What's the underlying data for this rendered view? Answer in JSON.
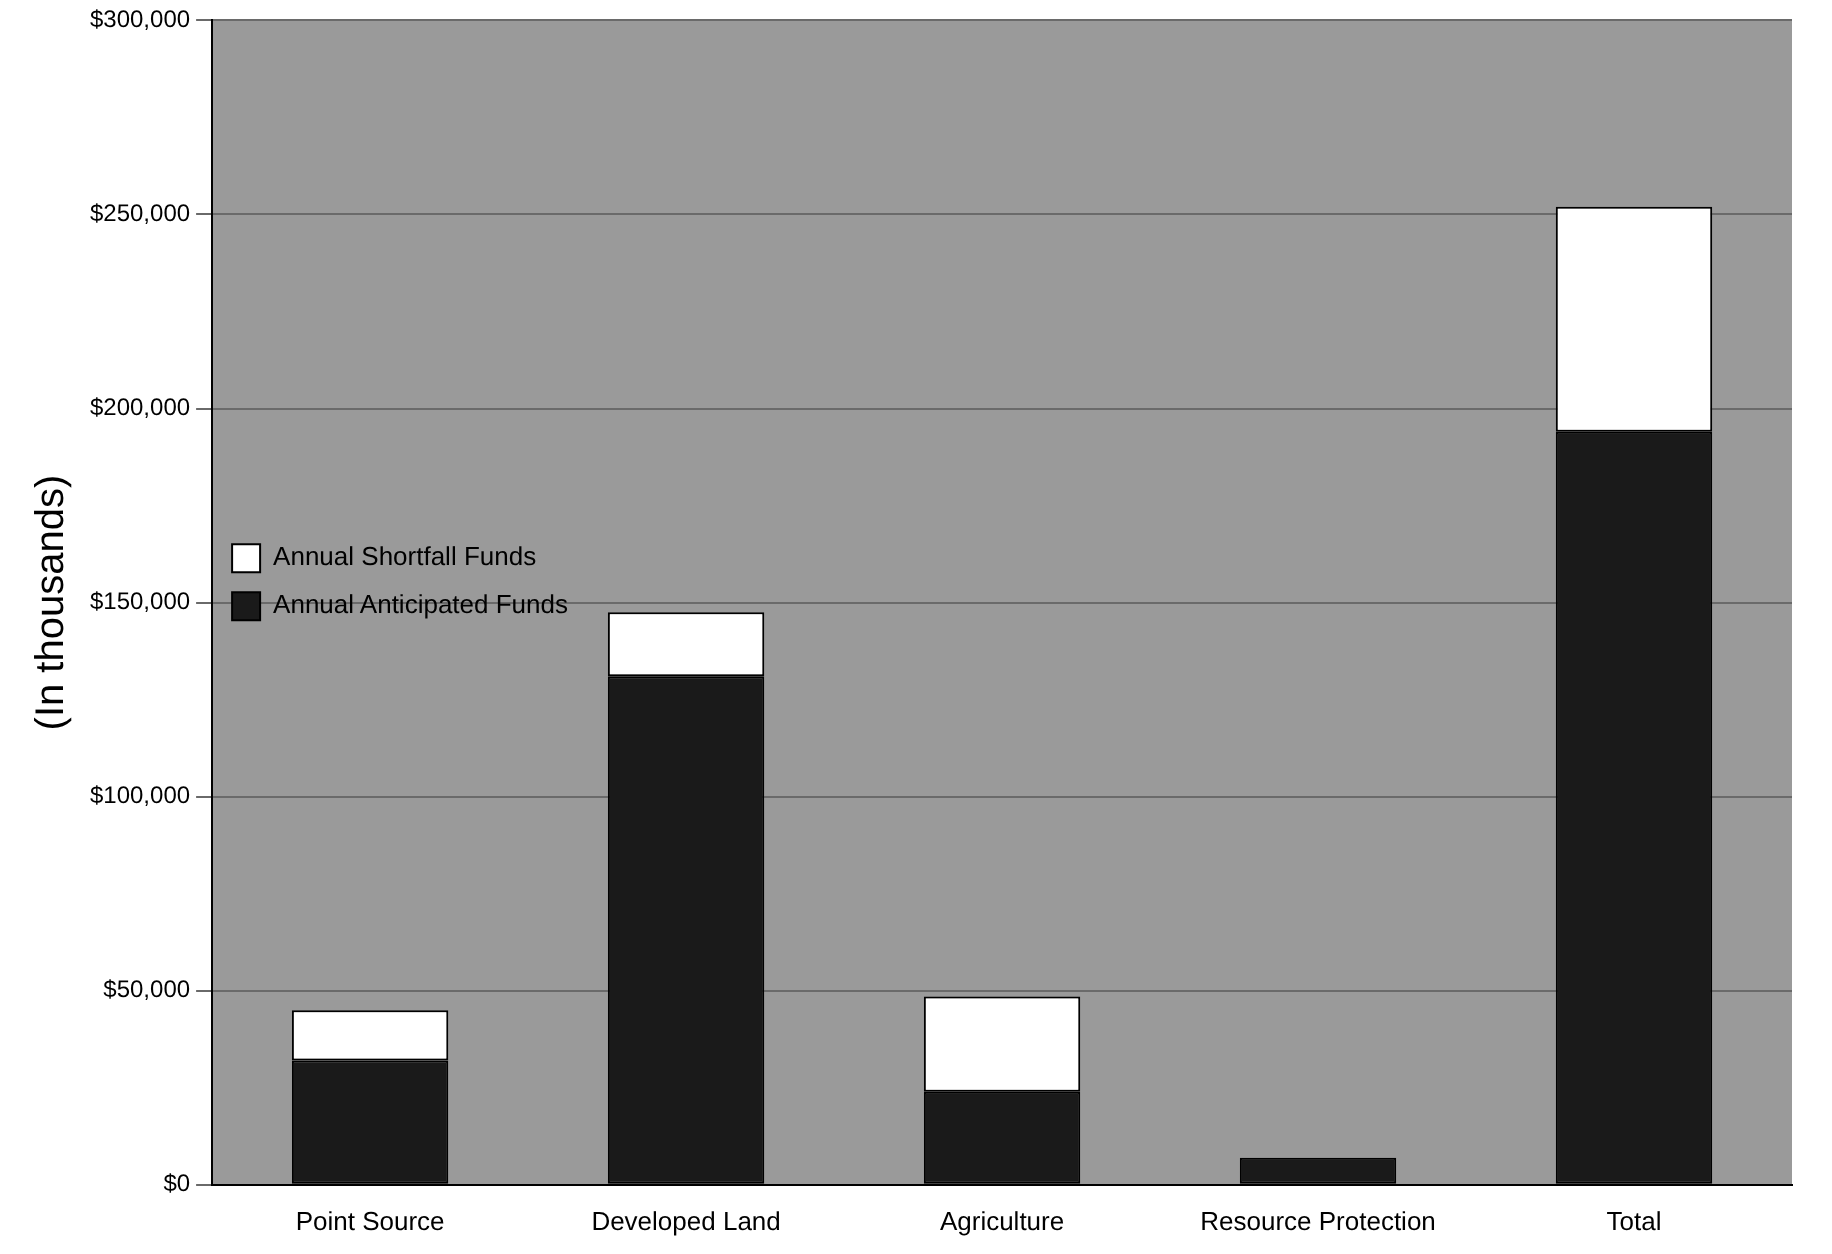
{
  "chart_data": {
    "type": "bar",
    "stacked": true,
    "ylabel": "(In thousands)",
    "categories": [
      "Point Source",
      "Developed Land",
      "Agriculture",
      "Resource Protection",
      "Total"
    ],
    "series": [
      {
        "name": "Annual Anticipated Funds",
        "color": "#1a1a1a",
        "values": [
          32000,
          131000,
          24000,
          7000,
          194000
        ]
      },
      {
        "name": "Annual Shortfall Funds",
        "color": "#ffffff",
        "values": [
          13000,
          16500,
          24500,
          0,
          58000
        ]
      }
    ],
    "ylim": [
      0,
      300000
    ],
    "yticks": [
      {
        "value": 0,
        "label": "$0"
      },
      {
        "value": 50000,
        "label": "$50,000"
      },
      {
        "value": 100000,
        "label": "$100,000"
      },
      {
        "value": 150000,
        "label": "$150,000"
      },
      {
        "value": 200000,
        "label": "$200,000"
      },
      {
        "value": 250000,
        "label": "$250,000"
      },
      {
        "value": 300000,
        "label": "$300,000"
      }
    ],
    "grid": "y",
    "legend": "top"
  }
}
